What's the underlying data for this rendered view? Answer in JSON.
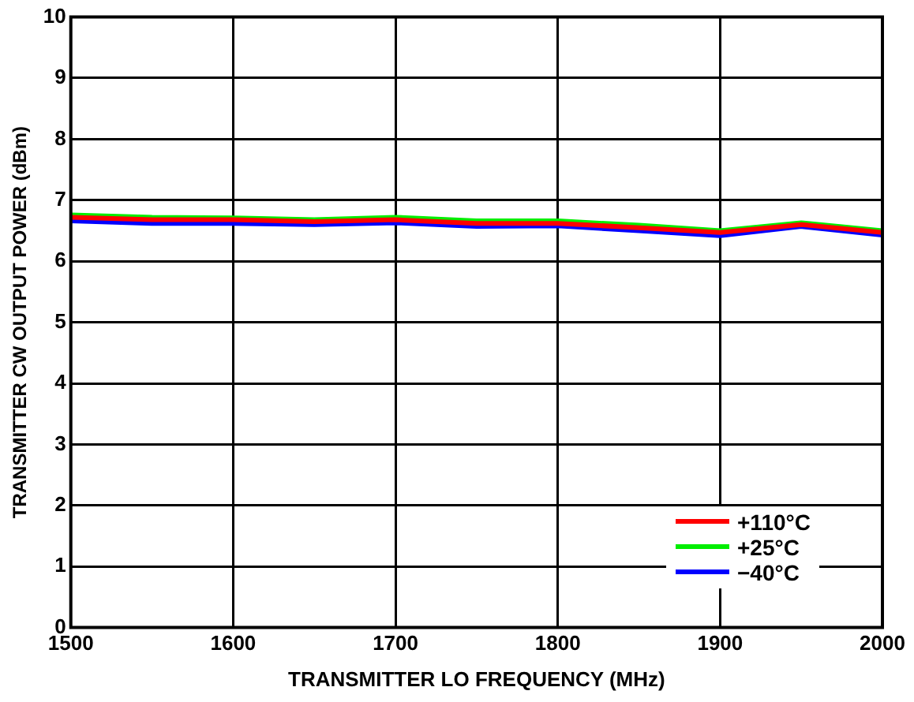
{
  "chart_data": {
    "type": "line",
    "xlabel": "TRANSMITTER LO FREQUENCY (MHz)",
    "ylabel": "TRANSMITTER CW OUTPUT POWER (dBm)",
    "x": [
      1500,
      1550,
      1600,
      1650,
      1700,
      1750,
      1800,
      1850,
      1900,
      1950,
      2000
    ],
    "series": [
      {
        "name": "+110°C",
        "color": "#ff0000",
        "values": [
          6.72,
          6.68,
          6.68,
          6.65,
          6.68,
          6.62,
          6.62,
          6.55,
          6.47,
          6.6,
          6.47
        ]
      },
      {
        "name": "+25°C",
        "color": "#00ee00",
        "values": [
          6.76,
          6.72,
          6.71,
          6.68,
          6.72,
          6.66,
          6.66,
          6.59,
          6.5,
          6.63,
          6.5
        ]
      },
      {
        "name": "−40°C",
        "color": "#0000ff",
        "values": [
          6.66,
          6.62,
          6.62,
          6.6,
          6.63,
          6.57,
          6.58,
          6.5,
          6.42,
          6.57,
          6.43
        ]
      }
    ],
    "xlim": [
      1500,
      2000
    ],
    "xticks": [
      1500,
      1600,
      1700,
      1800,
      1900,
      2000
    ],
    "ylim": [
      0,
      10
    ],
    "yticks": [
      0,
      1,
      2,
      3,
      4,
      5,
      6,
      7,
      8,
      9,
      10
    ],
    "grid": true,
    "legend": "bottom right",
    "marker": "none",
    "line_style": "solid"
  }
}
